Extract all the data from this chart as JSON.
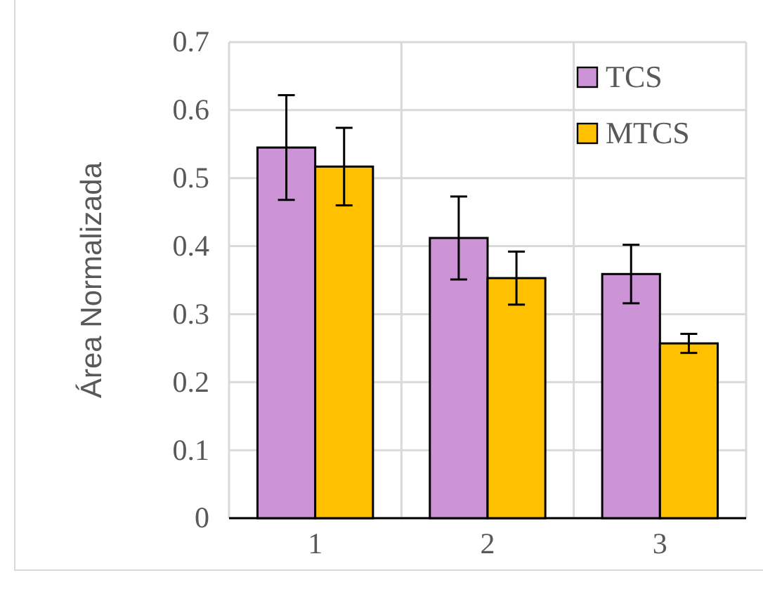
{
  "chart_data": {
    "type": "bar",
    "ylabel": "Área Normalizada",
    "categories": [
      "1",
      "2",
      "3"
    ],
    "series": [
      {
        "name": "TCS",
        "color": "#cc94d6",
        "values": [
          0.545,
          0.412,
          0.359
        ],
        "errors": [
          0.077,
          0.061,
          0.043
        ]
      },
      {
        "name": "MTCS",
        "color": "#ffc000",
        "values": [
          0.517,
          0.353,
          0.257
        ],
        "errors": [
          0.057,
          0.039,
          0.014
        ]
      }
    ],
    "ylim": [
      0,
      0.7
    ],
    "yticks": [
      0,
      0.1,
      0.2,
      0.3,
      0.4,
      0.5,
      0.6,
      0.7
    ],
    "grid": true,
    "legend": "top right"
  }
}
